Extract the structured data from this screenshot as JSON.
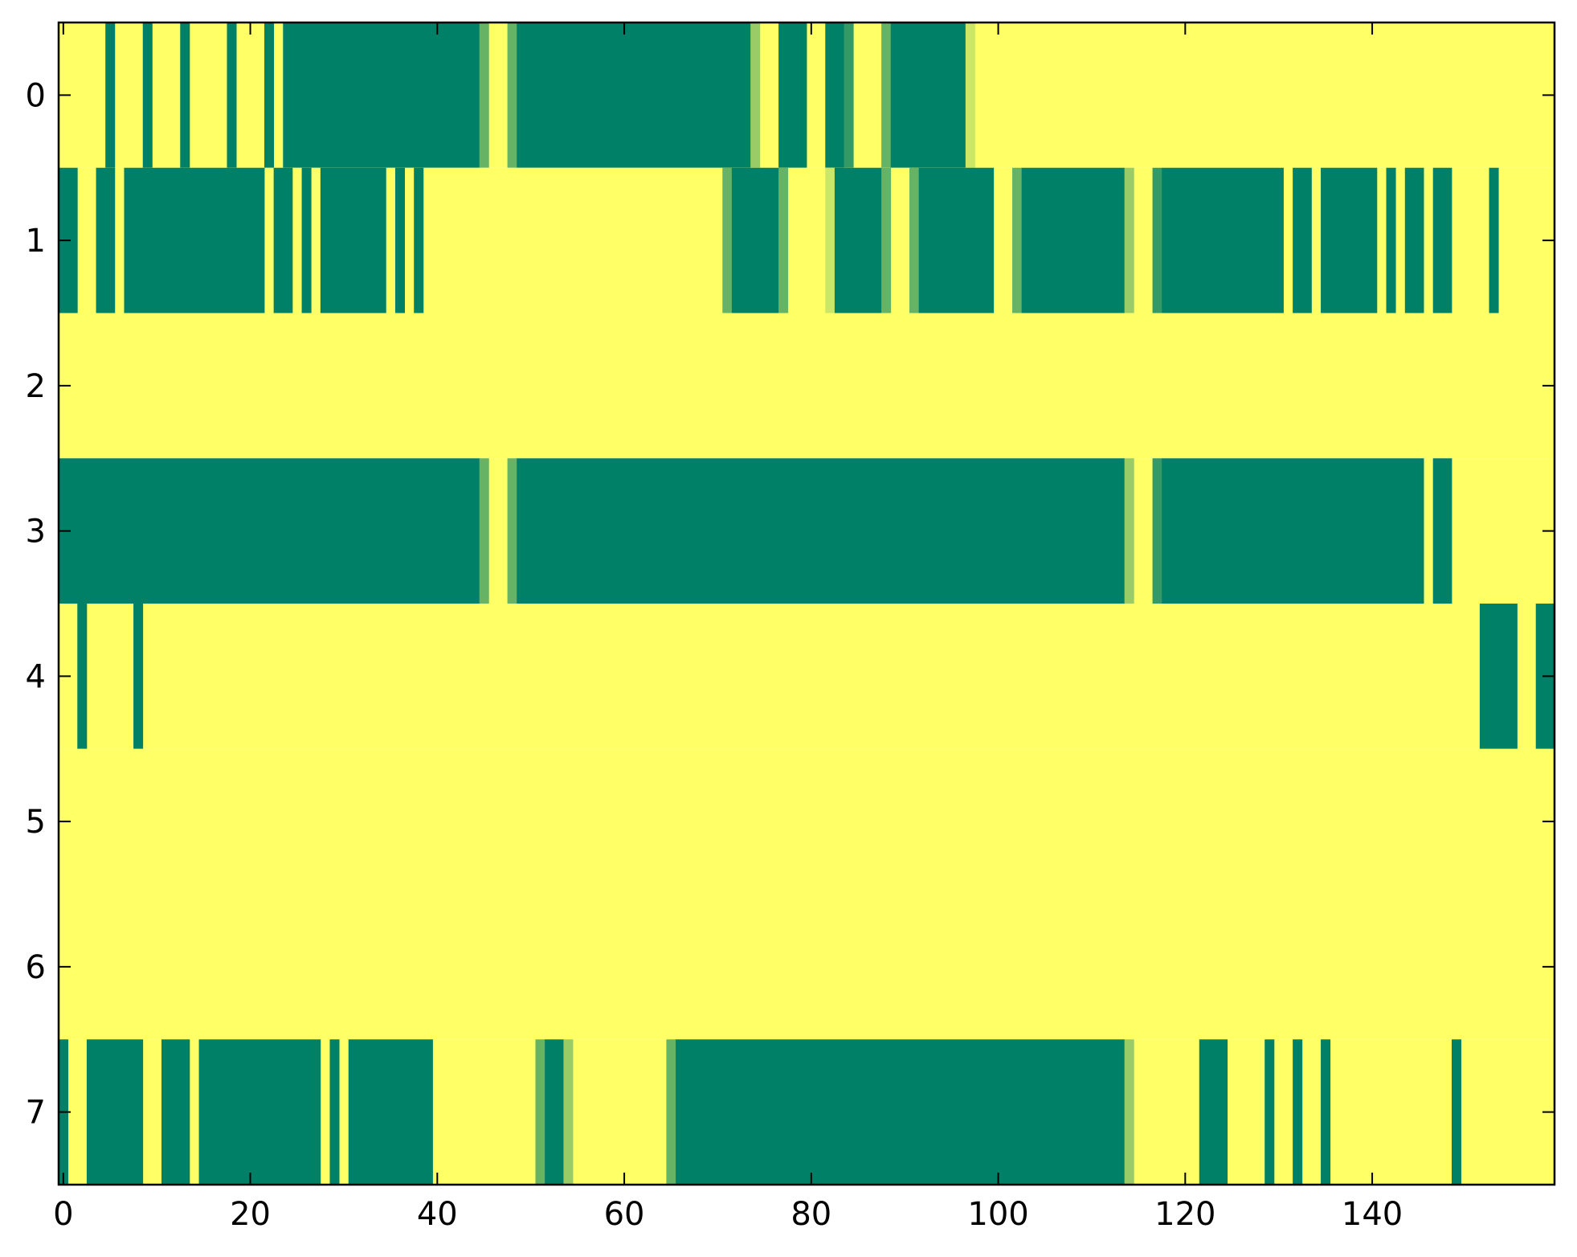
{
  "chart_data": {
    "type": "heatmap",
    "title": "",
    "xlabel": "",
    "ylabel": "",
    "n_cols": 160,
    "n_rows": 8,
    "xlim": [
      -0.5,
      159.5
    ],
    "ylim": [
      7.5,
      -0.5
    ],
    "grid": false,
    "colormap": "summer",
    "colors": {
      "low": "#008066",
      "high": "#ffff66",
      "light": "#bfdf66",
      "mid": "#5fae66",
      "dark": "#2f9766",
      "axis": "#000000"
    },
    "default_value": 1,
    "x_ticks": [
      0,
      20,
      40,
      60,
      80,
      100,
      120,
      140
    ],
    "x_tick_labels": [
      "0",
      "20",
      "40",
      "60",
      "80",
      "100",
      "120",
      "140"
    ],
    "y_ticks": [
      0,
      1,
      2,
      3,
      4,
      5,
      6,
      7
    ],
    "y_tick_labels": [
      "0",
      "1",
      "2",
      "3",
      "4",
      "5",
      "6",
      "7"
    ],
    "segments_note": "each row lists [start_column, end_column, value] runs; cells not listed have default_value",
    "rows": [
      [
        [
          5,
          5,
          0
        ],
        [
          9,
          9,
          0
        ],
        [
          13,
          13,
          0
        ],
        [
          18,
          18,
          0
        ],
        [
          22,
          22,
          0
        ],
        [
          24,
          44,
          0
        ],
        [
          45,
          45,
          0.4
        ],
        [
          48,
          48,
          0.4
        ],
        [
          49,
          73,
          0
        ],
        [
          74,
          74,
          0.6
        ],
        [
          77,
          79,
          0
        ],
        [
          82,
          83,
          0
        ],
        [
          84,
          84,
          0.2
        ],
        [
          88,
          88,
          0.4
        ],
        [
          89,
          96,
          0
        ],
        [
          97,
          97,
          0.8
        ]
      ],
      [
        [
          0,
          1,
          0
        ],
        [
          4,
          5,
          0
        ],
        [
          7,
          21,
          0
        ],
        [
          23,
          24,
          0
        ],
        [
          26,
          26,
          0
        ],
        [
          28,
          34,
          0
        ],
        [
          36,
          36,
          0
        ],
        [
          38,
          38,
          0
        ],
        [
          71,
          71,
          0.4
        ],
        [
          72,
          76,
          0
        ],
        [
          77,
          77,
          0.4
        ],
        [
          82,
          82,
          0.8
        ],
        [
          83,
          87,
          0
        ],
        [
          88,
          88,
          0.4
        ],
        [
          91,
          91,
          0.4
        ],
        [
          92,
          99,
          0
        ],
        [
          102,
          102,
          0.4
        ],
        [
          103,
          113,
          0
        ],
        [
          114,
          114,
          0.6
        ],
        [
          117,
          117,
          0.2
        ],
        [
          118,
          130,
          0
        ],
        [
          132,
          133,
          0
        ],
        [
          135,
          140,
          0
        ],
        [
          142,
          142,
          0
        ],
        [
          144,
          145,
          0
        ],
        [
          147,
          148,
          0
        ],
        [
          153,
          153,
          0
        ]
      ],
      [],
      [
        [
          0,
          44,
          0
        ],
        [
          45,
          45,
          0.4
        ],
        [
          48,
          48,
          0.4
        ],
        [
          49,
          113,
          0
        ],
        [
          114,
          114,
          0.6
        ],
        [
          117,
          117,
          0.2
        ],
        [
          118,
          145,
          0
        ],
        [
          147,
          148,
          0
        ]
      ],
      [
        [
          2,
          2,
          0
        ],
        [
          8,
          8,
          0
        ],
        [
          152,
          155,
          0
        ],
        [
          158,
          159,
          0
        ]
      ],
      [],
      [],
      [
        [
          0,
          0,
          0
        ],
        [
          3,
          8,
          0
        ],
        [
          11,
          13,
          0
        ],
        [
          15,
          27,
          0
        ],
        [
          29,
          29,
          0
        ],
        [
          31,
          39,
          0
        ],
        [
          51,
          51,
          0.4
        ],
        [
          52,
          53,
          0
        ],
        [
          54,
          54,
          0.6
        ],
        [
          65,
          65,
          0.4
        ],
        [
          66,
          113,
          0
        ],
        [
          114,
          114,
          0.6
        ],
        [
          122,
          124,
          0
        ],
        [
          129,
          129,
          0
        ],
        [
          132,
          132,
          0
        ],
        [
          135,
          135,
          0
        ],
        [
          149,
          149,
          0
        ]
      ]
    ]
  }
}
